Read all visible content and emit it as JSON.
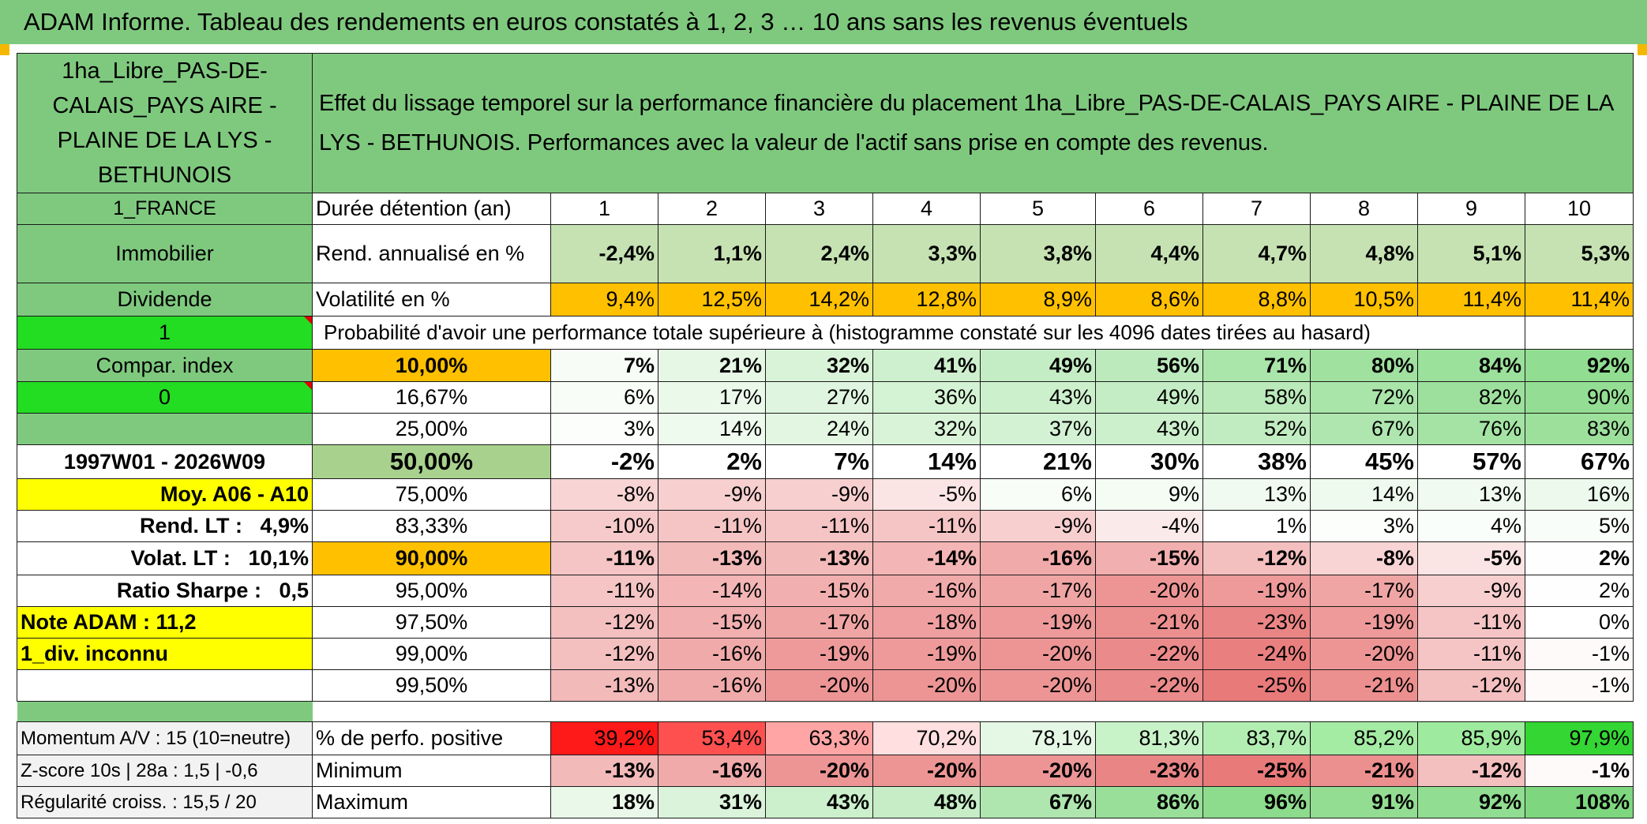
{
  "title": "ADAM Informe. Tableau des rendements en euros constatés à 1, 2, 3 … 10 ans sans les revenus éventuels",
  "colors": {
    "header_green": "#7fc97f",
    "bright_green": "#22dd22",
    "orange": "#ffc000",
    "yellow": "#ffff00",
    "red_text": "#d40000"
  },
  "left_panel": {
    "asset_name": "1ha_Libre_PAS-DE-CALAIS_PAYS AIRE - PLAINE DE LA LYS - BETHUNOIS",
    "country": "1_FRANCE",
    "category": "Immobilier",
    "income_type": "Dividende",
    "flag_1": "1",
    "compar_index": "Compar. index",
    "flag_0": "0",
    "period": "1997W01 - 2026W09",
    "moy": "Moy. A06 - A10",
    "rend_lt_label": "Rend. LT :",
    "rend_lt_value": "4,9%",
    "volat_lt_label": "Volat. LT :",
    "volat_lt_value": "10,1%",
    "sharpe_label": "Ratio Sharpe :",
    "sharpe_value": "0,5",
    "note_adam": "Note ADAM : 11,2",
    "div_inconnu": "1_div. inconnu",
    "momentum": "Momentum A/V : 15 (10=neutre)",
    "zscore": "Z-score 10s | 28a : 1,5 | -0,6",
    "regularite": "Régularité croiss. : 15,5 / 20"
  },
  "header_text": "Effet du lissage temporel sur la performance financière du placement 1ha_Libre_PAS-DE-CALAIS_PAYS AIRE - PLAINE DE LA LYS - BETHUNOIS. Performances avec la valeur de l'actif sans prise en compte des revenus.",
  "duree_label": "Durée détention (an)",
  "years": [
    "1",
    "2",
    "3",
    "4",
    "5",
    "6",
    "7",
    "8",
    "9",
    "10"
  ],
  "rend_label": "Rend. annualisé en %",
  "rend": [
    "-2,4%",
    "1,1%",
    "2,4%",
    "3,3%",
    "3,8%",
    "4,4%",
    "4,7%",
    "4,8%",
    "5,1%",
    "5,3%"
  ],
  "vol_label": "Volatilité en %",
  "vol": [
    "9,4%",
    "12,5%",
    "14,2%",
    "12,8%",
    "8,9%",
    "8,6%",
    "8,8%",
    "10,5%",
    "11,4%",
    "11,4%"
  ],
  "proba_label": "Probabilité d'avoir une performance totale supérieure à (histogramme constaté sur les 4096 dates tirées au hasard)",
  "quantiles": [
    {
      "label": "10,00%",
      "values": [
        "7%",
        "21%",
        "32%",
        "41%",
        "49%",
        "56%",
        "71%",
        "80%",
        "84%",
        "92%"
      ]
    },
    {
      "label": "16,67%",
      "values": [
        "6%",
        "17%",
        "27%",
        "36%",
        "43%",
        "49%",
        "58%",
        "72%",
        "82%",
        "90%"
      ]
    },
    {
      "label": "25,00%",
      "values": [
        "3%",
        "14%",
        "24%",
        "32%",
        "37%",
        "43%",
        "52%",
        "67%",
        "76%",
        "83%"
      ]
    },
    {
      "label": "50,00%",
      "values": [
        "-2%",
        "2%",
        "7%",
        "14%",
        "21%",
        "30%",
        "38%",
        "45%",
        "57%",
        "67%"
      ]
    },
    {
      "label": "75,00%",
      "values": [
        "-8%",
        "-9%",
        "-9%",
        "-5%",
        "6%",
        "9%",
        "13%",
        "14%",
        "13%",
        "16%"
      ]
    },
    {
      "label": "83,33%",
      "values": [
        "-10%",
        "-11%",
        "-11%",
        "-11%",
        "-9%",
        "-4%",
        "1%",
        "3%",
        "4%",
        "5%"
      ]
    },
    {
      "label": "90,00%",
      "values": [
        "-11%",
        "-13%",
        "-13%",
        "-14%",
        "-16%",
        "-15%",
        "-12%",
        "-8%",
        "-5%",
        "2%"
      ]
    },
    {
      "label": "95,00%",
      "values": [
        "-11%",
        "-14%",
        "-15%",
        "-16%",
        "-17%",
        "-20%",
        "-19%",
        "-17%",
        "-9%",
        "2%"
      ]
    },
    {
      "label": "97,50%",
      "values": [
        "-12%",
        "-15%",
        "-17%",
        "-18%",
        "-19%",
        "-21%",
        "-23%",
        "-19%",
        "-11%",
        "0%"
      ]
    },
    {
      "label": "99,00%",
      "values": [
        "-12%",
        "-16%",
        "-19%",
        "-19%",
        "-20%",
        "-22%",
        "-24%",
        "-20%",
        "-11%",
        "-1%"
      ]
    },
    {
      "label": "99,50%",
      "values": [
        "-13%",
        "-16%",
        "-20%",
        "-20%",
        "-20%",
        "-22%",
        "-25%",
        "-21%",
        "-12%",
        "-1%"
      ]
    }
  ],
  "positive_label": "% de perfo. positive",
  "positive": [
    "39,2%",
    "53,4%",
    "63,3%",
    "70,2%",
    "78,1%",
    "81,3%",
    "83,7%",
    "85,2%",
    "85,9%",
    "97,9%"
  ],
  "minimum_label": "Minimum",
  "minimum": [
    "-13%",
    "-16%",
    "-20%",
    "-20%",
    "-20%",
    "-23%",
    "-25%",
    "-21%",
    "-12%",
    "-1%"
  ],
  "maximum_label": "Maximum",
  "maximum": [
    "18%",
    "31%",
    "43%",
    "48%",
    "67%",
    "86%",
    "96%",
    "91%",
    "92%",
    "108%"
  ]
}
